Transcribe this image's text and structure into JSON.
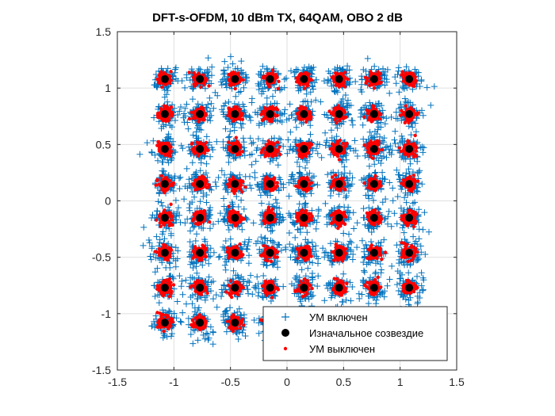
{
  "chart_data": {
    "type": "scatter",
    "title": "DFT-s-OFDM, 10 dBm TX, 64QAM, OBO 2 dB",
    "xlabel": "",
    "ylabel": "",
    "xlim": [
      -1.5,
      1.5
    ],
    "ylim": [
      -1.5,
      1.5
    ],
    "xticks": [
      -1.5,
      -1,
      -0.5,
      0,
      0.5,
      1,
      1.5
    ],
    "yticks": [
      -1.5,
      -1,
      -0.5,
      0,
      0.5,
      1,
      1.5
    ],
    "xtick_labels": [
      "-1.5",
      "-1",
      "-0.5",
      "0",
      "0.5",
      "1",
      "1.5"
    ],
    "ytick_labels": [
      "-1.5",
      "-1",
      "-0.5",
      "0",
      "0.5",
      "1",
      "1.5"
    ],
    "grid": true,
    "legend_position": "bottom-right",
    "constellation_levels": [
      -1.08,
      -0.77,
      -0.46,
      -0.15,
      0.15,
      0.46,
      0.77,
      1.08
    ],
    "series": [
      {
        "name": "УМ включен",
        "marker": "plus",
        "color": "#0072BD",
        "spread": 0.055
      },
      {
        "name": "Изначальное созвездие",
        "marker": "filled-circle",
        "color": "#000000"
      },
      {
        "name": "УМ выключен",
        "marker": "dot",
        "color": "#FF0000",
        "spread": 0.028
      }
    ]
  }
}
